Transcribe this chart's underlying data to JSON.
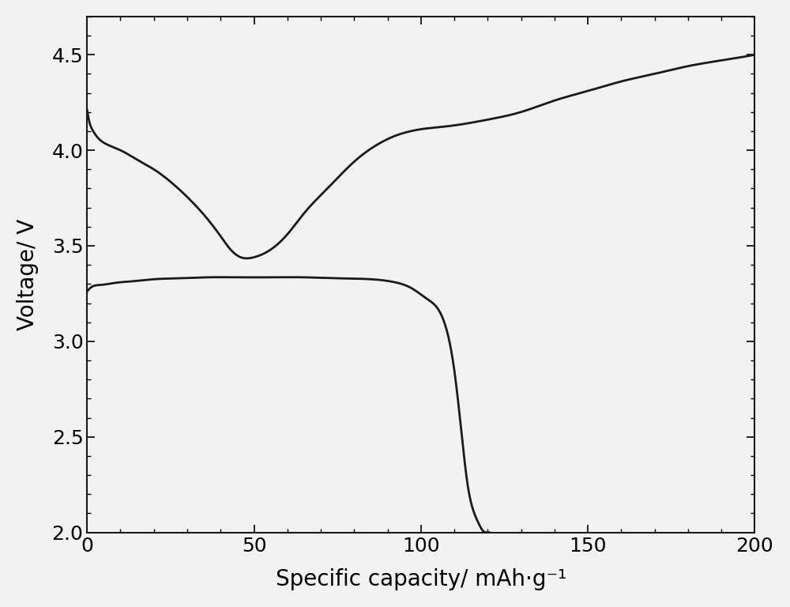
{
  "title": "",
  "xlabel": "Specific capacity/ mAh·g⁻¹",
  "ylabel": "Voltage/ V",
  "xlim": [
    0,
    200
  ],
  "ylim": [
    2.0,
    4.7
  ],
  "xticks": [
    0,
    50,
    100,
    150,
    200
  ],
  "yticks": [
    2.0,
    2.5,
    3.0,
    3.5,
    4.0,
    4.5
  ],
  "line_color": "#1a1a1a",
  "line_width": 2.0,
  "background_color": "#f0f0f0",
  "charge_curve": {
    "x": [
      0.0,
      0.3,
      0.8,
      1.5,
      3,
      6,
      10,
      15,
      20,
      26,
      32,
      37,
      40,
      43,
      46,
      50,
      55,
      60,
      65,
      72,
      80,
      88,
      93,
      97,
      100,
      105,
      110,
      120,
      130,
      140,
      150,
      160,
      170,
      180,
      190,
      200
    ],
    "y": [
      4.21,
      4.18,
      4.14,
      4.11,
      4.07,
      4.03,
      4.0,
      3.95,
      3.9,
      3.82,
      3.72,
      3.62,
      3.55,
      3.48,
      3.44,
      3.44,
      3.48,
      3.56,
      3.67,
      3.8,
      3.94,
      4.04,
      4.08,
      4.1,
      4.11,
      4.12,
      4.13,
      4.16,
      4.2,
      4.26,
      4.31,
      4.36,
      4.4,
      4.44,
      4.47,
      4.5
    ]
  },
  "discharge_curve": {
    "x": [
      0,
      1,
      4,
      8,
      14,
      20,
      28,
      36,
      45,
      55,
      65,
      75,
      85,
      92,
      97,
      102,
      107,
      110,
      112,
      114,
      116,
      117.5,
      118.5,
      119.5,
      120.5
    ],
    "y": [
      3.26,
      3.28,
      3.295,
      3.305,
      3.315,
      3.325,
      3.33,
      3.335,
      3.335,
      3.335,
      3.335,
      3.33,
      3.325,
      3.31,
      3.28,
      3.22,
      3.1,
      2.85,
      2.55,
      2.25,
      2.1,
      2.04,
      2.01,
      2.0,
      2.0
    ]
  }
}
